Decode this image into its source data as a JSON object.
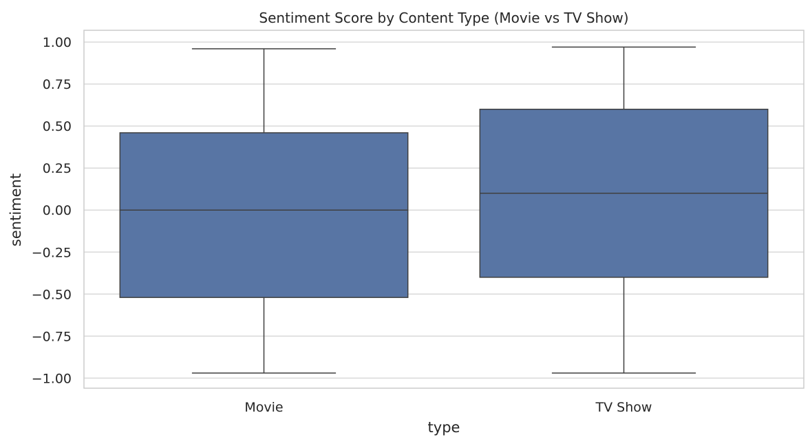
{
  "chart_data": {
    "type": "box",
    "title": "Sentiment Score by Content Type (Movie vs TV Show)",
    "xlabel": "type",
    "ylabel": "sentiment",
    "categories": [
      "Movie",
      "TV Show"
    ],
    "boxes": [
      {
        "category": "Movie",
        "whisker_low": -0.97,
        "q1": -0.52,
        "median": 0.0,
        "q3": 0.46,
        "whisker_high": 0.96
      },
      {
        "category": "TV Show",
        "whisker_low": -0.97,
        "q1": -0.4,
        "median": 0.1,
        "q3": 0.6,
        "whisker_high": 0.97
      }
    ],
    "ylim": [
      -1.06,
      1.07
    ],
    "yticks": [
      1.0,
      0.75,
      0.5,
      0.25,
      0.0,
      -0.25,
      -0.5,
      -0.75,
      -1.0
    ],
    "ytick_labels": [
      "1.00",
      "0.75",
      "0.50",
      "0.25",
      "0.00",
      "−0.25",
      "−0.50",
      "−0.75",
      "−1.00"
    ],
    "grid": true,
    "colors": {
      "box_fill": "#5875a4",
      "line": "#3f3f3f",
      "grid": "#d9d9d9",
      "frame": "#cccccc"
    }
  }
}
